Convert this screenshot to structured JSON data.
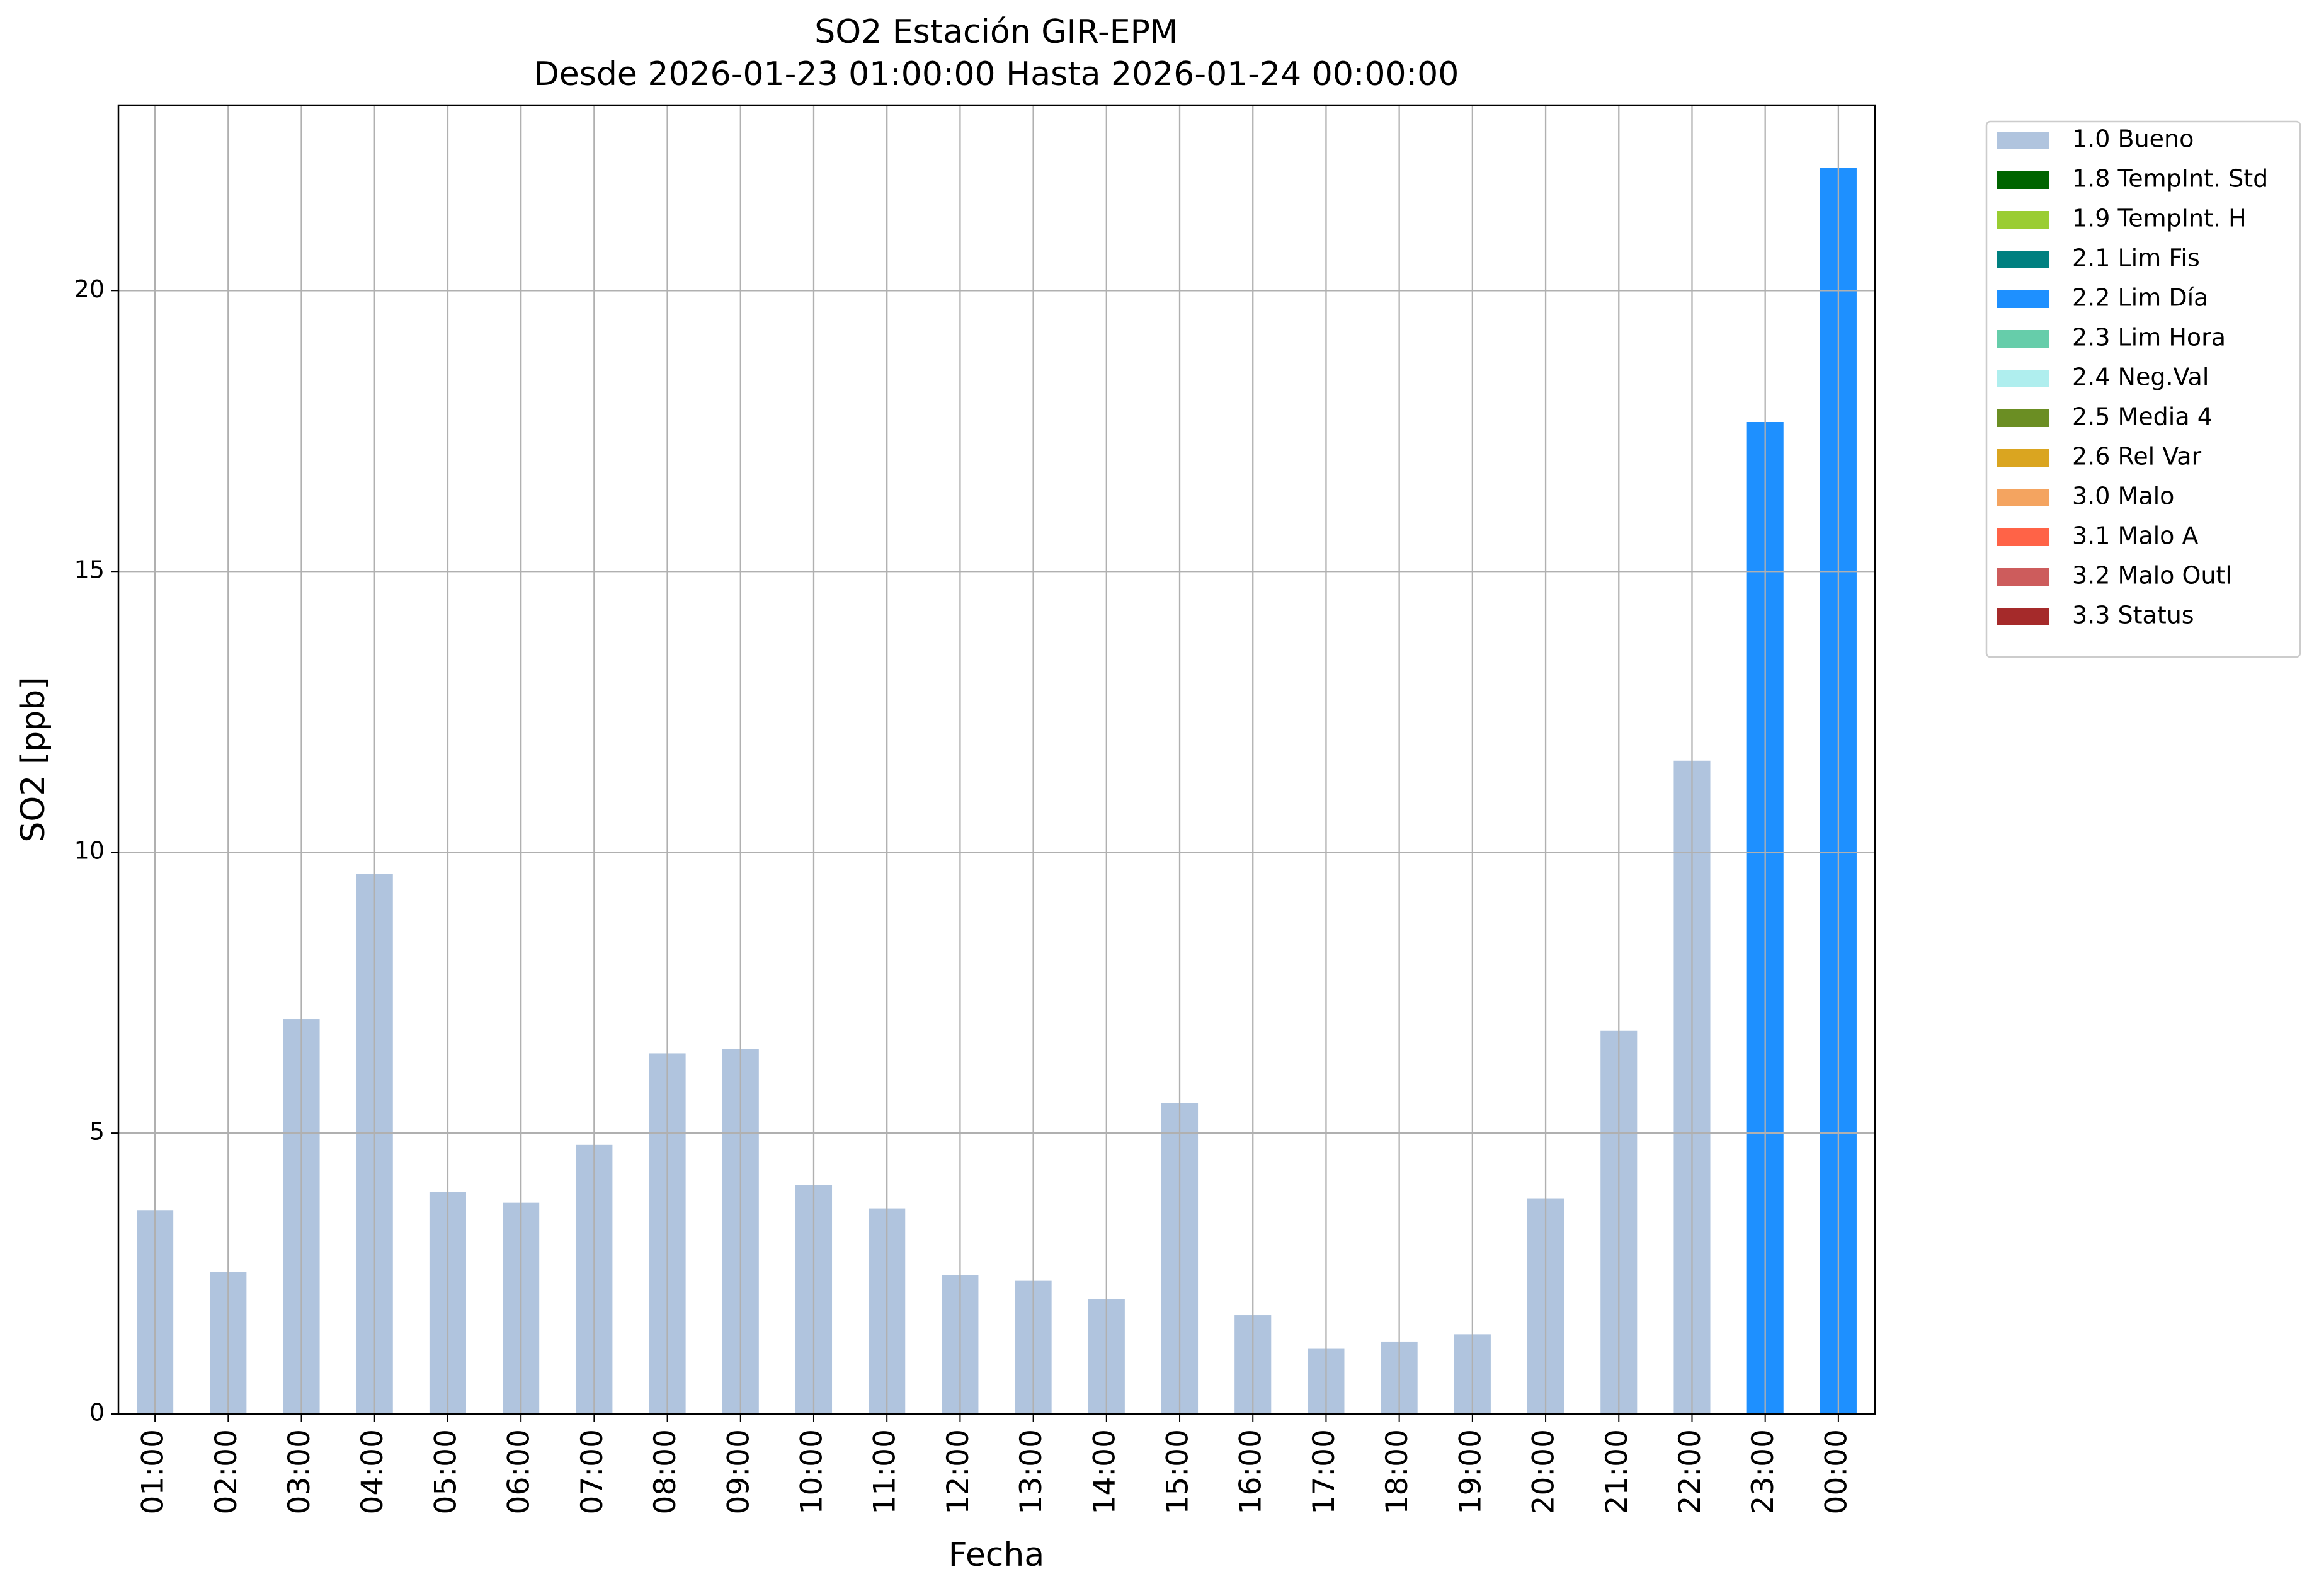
{
  "chart_data": {
    "type": "stacked-bar",
    "title": "SO2 Estación GIR-EPM",
    "subtitle": "Desde 2026-01-23 01:00:00 Hasta 2026-01-24 00:00:00",
    "x_label": "Fecha",
    "y_label": "SO2 [ppb]",
    "categories": [
      "01:00",
      "02:00",
      "03:00",
      "04:00",
      "05:00",
      "06:00",
      "07:00",
      "08:00",
      "09:00",
      "10:00",
      "11:00",
      "12:00",
      "13:00",
      "14:00",
      "15:00",
      "16:00",
      "17:00",
      "18:00",
      "19:00",
      "20:00",
      "21:00",
      "22:00",
      "23:00",
      "00:00"
    ],
    "series": [
      {
        "name": "1.0 Bueno",
        "color": "#b0c4de",
        "values": [
          3.63,
          2.53,
          7.03,
          9.61,
          3.95,
          3.76,
          4.79,
          6.42,
          6.5,
          4.08,
          3.66,
          2.47,
          2.37,
          2.05,
          5.53,
          1.76,
          1.16,
          1.29,
          1.42,
          3.84,
          6.82,
          11.63,
          null,
          null
        ]
      },
      {
        "name": "1.8 TempInt. Std",
        "color": "#006400",
        "values": [
          null,
          null,
          null,
          null,
          null,
          null,
          null,
          null,
          null,
          null,
          null,
          null,
          null,
          null,
          null,
          null,
          null,
          null,
          null,
          null,
          null,
          null,
          null,
          null
        ]
      },
      {
        "name": "1.9 TempInt. H",
        "color": "#9acd32",
        "values": [
          null,
          null,
          null,
          null,
          null,
          null,
          null,
          null,
          null,
          null,
          null,
          null,
          null,
          null,
          null,
          null,
          null,
          null,
          null,
          null,
          null,
          null,
          null,
          null
        ]
      },
      {
        "name": "2.1 Lim Fis",
        "color": "#008080",
        "values": [
          null,
          null,
          null,
          null,
          null,
          null,
          null,
          null,
          null,
          null,
          null,
          null,
          null,
          null,
          null,
          null,
          null,
          null,
          null,
          null,
          null,
          null,
          null,
          null
        ]
      },
      {
        "name": "2.2 Lim Día",
        "color": "#1e90ff",
        "values": [
          null,
          null,
          null,
          null,
          null,
          null,
          null,
          null,
          null,
          null,
          null,
          null,
          null,
          null,
          null,
          null,
          null,
          null,
          null,
          null,
          null,
          null,
          17.66,
          22.18
        ]
      },
      {
        "name": "2.3 Lim Hora",
        "color": "#66cdaa",
        "values": [
          null,
          null,
          null,
          null,
          null,
          null,
          null,
          null,
          null,
          null,
          null,
          null,
          null,
          null,
          null,
          null,
          null,
          null,
          null,
          null,
          null,
          null,
          null,
          null
        ]
      },
      {
        "name": "2.4 Neg.Val",
        "color": "#afeeee",
        "values": [
          null,
          null,
          null,
          null,
          null,
          null,
          null,
          null,
          null,
          null,
          null,
          null,
          null,
          null,
          null,
          null,
          null,
          null,
          null,
          null,
          null,
          null,
          null,
          null
        ]
      },
      {
        "name": "2.5 Media 4",
        "color": "#6b8e23",
        "values": [
          null,
          null,
          null,
          null,
          null,
          null,
          null,
          null,
          null,
          null,
          null,
          null,
          null,
          null,
          null,
          null,
          null,
          null,
          null,
          null,
          null,
          null,
          null,
          null
        ]
      },
      {
        "name": "2.6 Rel Var",
        "color": "#daa520",
        "values": [
          null,
          null,
          null,
          null,
          null,
          null,
          null,
          null,
          null,
          null,
          null,
          null,
          null,
          null,
          null,
          null,
          null,
          null,
          null,
          null,
          null,
          null,
          null,
          null
        ]
      },
      {
        "name": "3.0 Malo",
        "color": "#f4a460",
        "values": [
          null,
          null,
          null,
          null,
          null,
          null,
          null,
          null,
          null,
          null,
          null,
          null,
          null,
          null,
          null,
          null,
          null,
          null,
          null,
          null,
          null,
          null,
          null,
          null
        ]
      },
      {
        "name": "3.1 Malo A",
        "color": "#ff6347",
        "values": [
          null,
          null,
          null,
          null,
          null,
          null,
          null,
          null,
          null,
          null,
          null,
          null,
          null,
          null,
          null,
          null,
          null,
          null,
          null,
          null,
          null,
          null,
          null,
          null
        ]
      },
      {
        "name": "3.2 Malo Outl",
        "color": "#cd5c5c",
        "values": [
          null,
          null,
          null,
          null,
          null,
          null,
          null,
          null,
          null,
          null,
          null,
          null,
          null,
          null,
          null,
          null,
          null,
          null,
          null,
          null,
          null,
          null,
          null,
          null
        ]
      },
      {
        "name": "3.3 Status",
        "color": "#a52a2a",
        "values": [
          null,
          null,
          null,
          null,
          null,
          null,
          null,
          null,
          null,
          null,
          null,
          null,
          null,
          null,
          null,
          null,
          null,
          null,
          null,
          null,
          null,
          null,
          null,
          null
        ]
      }
    ],
    "ylim": [
      0,
      23.3
    ],
    "yticks": [
      0,
      5,
      10,
      15,
      20
    ],
    "grid": true,
    "legend": "outside-upper-right"
  }
}
